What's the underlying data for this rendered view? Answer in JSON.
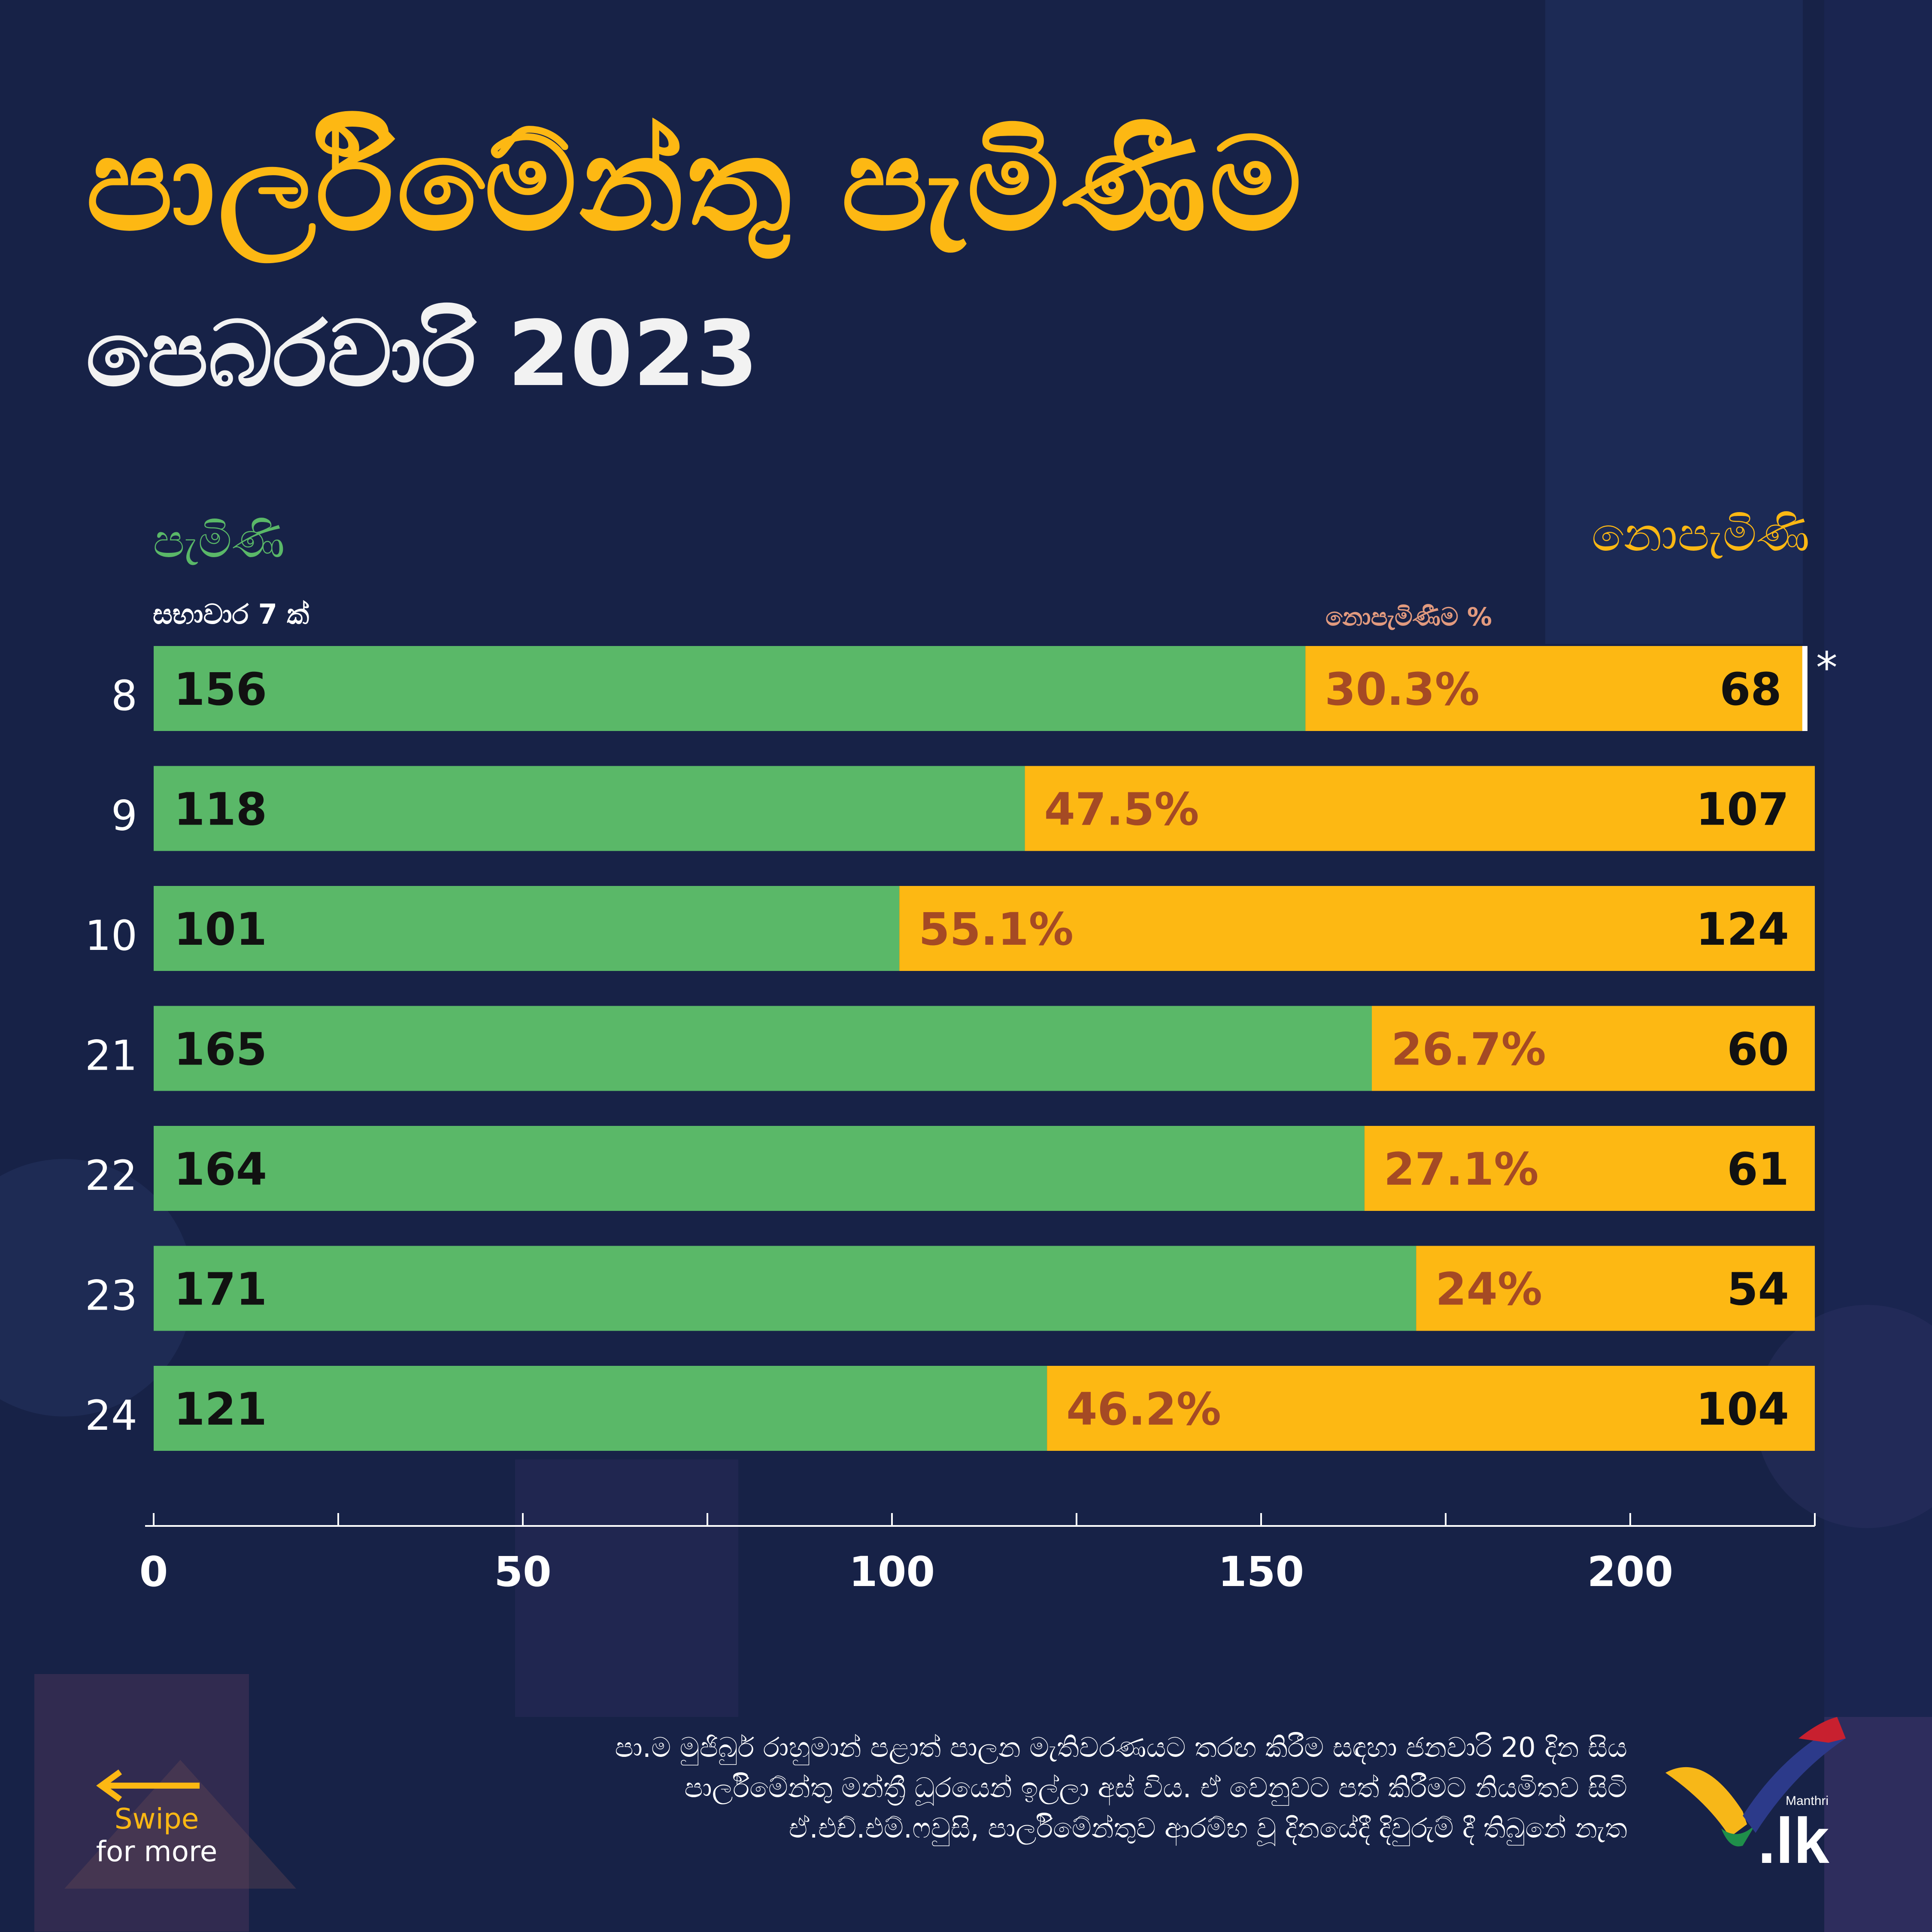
{
  "title": "පාර්ලිමේන්තු පැමිණීම",
  "subtitle": "පෙබරවාරි 2023",
  "legend": {
    "present": "පැමිණි",
    "absent": "නොපැමිණි"
  },
  "column_headers": {
    "sessions": "සභාවාර 7 ක්",
    "absent_pct": "නොපැමිණීම %"
  },
  "asterisk": "*",
  "footnote": [
    "පා.ම මුජිබුර් රාහුමාන් පළාත් පාලන මැතිවරණයට තරඟ කිරීම සඳහා ජනවාරි 20 දින සිය",
    "පාර්ලිමේන්තු මන්ත්‍රී ධූරයෙන් ඉල්ලා අස් විය. ඒ වෙනුවට පත් කිරීමට නියමිතව සිටි",
    "ඒ.එච්.එම්.ෆවුසි, පාර්ලිමේන්තුව ආරම්භ වූ දිනයේදී දිවුරුම් දී තිබුනේ නැත"
  ],
  "swipe": {
    "line1": "Swipe",
    "line2": "for more"
  },
  "logo": {
    "small": "Manthri",
    "big": ".lk"
  },
  "colors": {
    "background": "#172247",
    "present": "#5ab868",
    "absent": "#fdb813",
    "pct_text": "#a54a24",
    "title": "#fdb813"
  },
  "chart_data": {
    "type": "bar",
    "orientation": "horizontal",
    "stacked": true,
    "categories": [
      "8",
      "9",
      "10",
      "21",
      "22",
      "23",
      "24"
    ],
    "series": [
      {
        "name": "පැමිණි",
        "values": [
          156,
          118,
          101,
          165,
          164,
          171,
          121
        ]
      },
      {
        "name": "නොපැමිණි",
        "values": [
          68,
          107,
          124,
          60,
          61,
          54,
          104
        ]
      }
    ],
    "absent_pct_labels": [
      "30.3%",
      "47.5%",
      "55.1%",
      "26.7%",
      "27.1%",
      "24%",
      "46.2%"
    ],
    "xlim": [
      0,
      225
    ],
    "x_ticks": [
      0,
      50,
      100,
      150,
      200
    ],
    "x_tick_labels": [
      "0",
      "50",
      "100",
      "150",
      "200"
    ],
    "x_minor_step": 25,
    "grid": false,
    "legend_position": "top",
    "footnote_marker_category": "8"
  }
}
